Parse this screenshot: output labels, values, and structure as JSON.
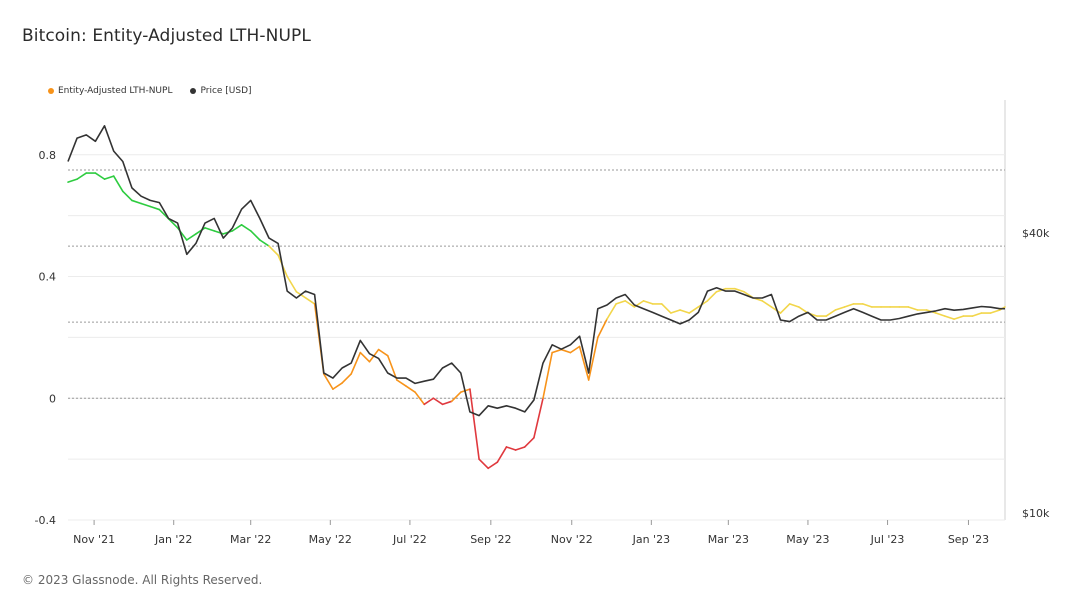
{
  "page": {
    "title": "Bitcoin: Entity-Adjusted LTH-NUPL",
    "footer": "© 2023 Glassnode. All Rights Reserved."
  },
  "legend": {
    "nupl_label": "Entity-Adjusted LTH-NUPL",
    "nupl_color": "#f7931a",
    "price_label": "Price [USD]",
    "price_color": "#333333"
  },
  "chart_data": {
    "type": "line",
    "title": "Bitcoin: Entity-Adjusted LTH-NUPL",
    "x_ticks": [
      "Nov '21",
      "Jan '22",
      "Mar '22",
      "May '22",
      "Jul '22",
      "Sep '22",
      "Nov '22",
      "Jan '23",
      "Mar '23",
      "May '23",
      "Jul '23",
      "Sep '23"
    ],
    "x_range": [
      "2021-10-12",
      "2023-10-04"
    ],
    "y_left": {
      "label": "Entity-Adjusted LTH-NUPL",
      "ticks": [
        "0.8",
        "0.4",
        "0",
        "-0.4"
      ],
      "tick_values": [
        0.8,
        0.4,
        0,
        -0.4
      ],
      "range": [
        -0.4,
        0.98
      ]
    },
    "y_right": {
      "label": "Price [USD]",
      "scale": "log",
      "ticks": [
        "$40k",
        "$10k"
      ],
      "tick_values": [
        40000,
        10000
      ]
    },
    "zone_colors": {
      "euphoria": "#2ecc40",
      "belief": "#f2d64b",
      "optimism": "#f7931a",
      "capitulation": "#e0393e"
    },
    "series": [
      {
        "name": "Entity-Adjusted LTH-NUPL",
        "color": "#f7931a",
        "days": [
          0,
          7,
          14,
          21,
          28,
          35,
          42,
          49,
          56,
          63,
          70,
          77,
          84,
          91,
          98,
          105,
          112,
          119,
          126,
          133,
          140,
          147,
          154,
          161,
          168,
          175,
          182,
          189,
          196,
          203,
          210,
          217,
          224,
          231,
          238,
          245,
          252,
          259,
          266,
          273,
          280,
          287,
          294,
          301,
          308,
          315,
          322,
          329,
          336,
          343,
          350,
          357,
          364,
          371,
          378,
          385,
          392,
          399,
          406,
          413,
          420,
          427,
          434,
          441,
          448,
          455,
          462,
          469,
          476,
          483,
          490,
          497,
          504,
          511,
          518,
          525,
          532,
          539,
          546,
          553,
          560,
          567,
          574,
          581,
          588,
          595,
          602,
          609,
          616,
          623,
          630,
          637,
          644,
          651,
          658,
          665,
          672,
          679,
          686,
          693,
          700,
          707,
          714,
          718
        ],
        "values": [
          0.71,
          0.72,
          0.74,
          0.74,
          0.72,
          0.73,
          0.68,
          0.65,
          0.64,
          0.63,
          0.62,
          0.59,
          0.56,
          0.52,
          0.54,
          0.56,
          0.55,
          0.54,
          0.55,
          0.57,
          0.55,
          0.52,
          0.5,
          0.47,
          0.4,
          0.35,
          0.33,
          0.31,
          0.08,
          0.03,
          0.05,
          0.08,
          0.15,
          0.12,
          0.16,
          0.14,
          0.06,
          0.04,
          0.02,
          -0.02,
          0.0,
          -0.02,
          -0.01,
          0.02,
          0.03,
          -0.2,
          -0.23,
          -0.21,
          -0.16,
          -0.17,
          -0.16,
          -0.13,
          0.0,
          0.15,
          0.16,
          0.15,
          0.17,
          0.06,
          0.2,
          0.26,
          0.31,
          0.32,
          0.3,
          0.32,
          0.31,
          0.31,
          0.28,
          0.29,
          0.28,
          0.3,
          0.32,
          0.35,
          0.36,
          0.36,
          0.35,
          0.33,
          0.32,
          0.3,
          0.28,
          0.31,
          0.3,
          0.28,
          0.27,
          0.27,
          0.29,
          0.3,
          0.31,
          0.31,
          0.3,
          0.3,
          0.3,
          0.3,
          0.3,
          0.29,
          0.29,
          0.28,
          0.27,
          0.26,
          0.27,
          0.27,
          0.28,
          0.28,
          0.29,
          0.3
        ]
      },
      {
        "name": "Price [USD]",
        "color": "#333333",
        "days": [
          0,
          7,
          14,
          21,
          28,
          35,
          42,
          49,
          56,
          63,
          70,
          77,
          84,
          91,
          98,
          105,
          112,
          119,
          126,
          133,
          140,
          147,
          154,
          161,
          168,
          175,
          182,
          189,
          196,
          203,
          210,
          217,
          224,
          231,
          238,
          245,
          252,
          259,
          266,
          273,
          280,
          287,
          294,
          301,
          308,
          315,
          322,
          329,
          336,
          343,
          350,
          357,
          364,
          371,
          378,
          385,
          392,
          399,
          406,
          413,
          420,
          427,
          434,
          441,
          448,
          455,
          462,
          469,
          476,
          483,
          490,
          497,
          504,
          511,
          518,
          525,
          532,
          539,
          546,
          553,
          560,
          567,
          574,
          581,
          588,
          595,
          602,
          609,
          616,
          623,
          630,
          637,
          644,
          651,
          658,
          665,
          672,
          679,
          686,
          693,
          700,
          707,
          714,
          718
        ],
        "values": [
          57000,
          64000,
          65000,
          63000,
          68000,
          60000,
          57000,
          50000,
          48000,
          47000,
          46500,
          43000,
          42000,
          36000,
          38000,
          42000,
          43000,
          39000,
          41000,
          45000,
          47000,
          43000,
          39000,
          38000,
          30000,
          29000,
          30000,
          29500,
          20000,
          19500,
          20500,
          21000,
          23500,
          22000,
          21500,
          20000,
          19500,
          19500,
          19000,
          19200,
          19400,
          20500,
          21000,
          20000,
          16500,
          16200,
          17000,
          16800,
          17000,
          16800,
          16500,
          17500,
          21000,
          23000,
          22500,
          23000,
          24000,
          20000,
          27500,
          28000,
          29000,
          29500,
          28000,
          27500,
          27000,
          26500,
          26000,
          25500,
          26000,
          27000,
          30000,
          30500,
          30000,
          30000,
          29500,
          29000,
          29000,
          29500,
          26000,
          25800,
          26500,
          27000,
          26000,
          26000,
          26500,
          27000,
          27500,
          27000,
          26500,
          26000,
          26000,
          26200,
          26500,
          26800,
          27000,
          27200,
          27500,
          27300,
          27400,
          27600,
          27800,
          27700,
          27500,
          27500
        ]
      }
    ]
  }
}
